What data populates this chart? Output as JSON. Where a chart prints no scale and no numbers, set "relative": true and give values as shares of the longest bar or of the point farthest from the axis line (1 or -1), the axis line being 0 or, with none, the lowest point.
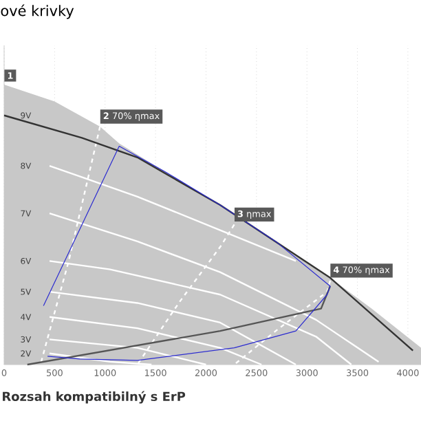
{
  "chart_data": {
    "type": "line",
    "title": "ové krivky",
    "relative": true,
    "xlim": [
      0,
      4130
    ],
    "xticks": [
      0,
      500,
      1000,
      1500,
      2000,
      2500,
      3000,
      3500,
      4000
    ],
    "grid": "x",
    "marker": "none",
    "series": [
      {
        "type": "area",
        "color": "#c8c8c8",
        "x": [
          0,
          500,
          950,
          1140,
          1590,
          2140,
          2690,
          3230,
          3640,
          4130
        ],
        "values": [
          1,
          0.94,
          0.85,
          0.79,
          0.69,
          0.57,
          0.44,
          0.31,
          0.2,
          0.06
        ]
      },
      {
        "name": "8V",
        "color": "#ffffff",
        "x": [
          450,
          1320,
          2140,
          2890
        ],
        "values": [
          0.71,
          0.6,
          0.48,
          0.37
        ]
      },
      {
        "name": "7V",
        "color": "#ffffff",
        "x": [
          450,
          1320,
          2140,
          3090,
          3710
        ],
        "values": [
          0.54,
          0.44,
          0.33,
          0.16,
          0.01
        ]
      },
      {
        "name": "6V",
        "color": "#ffffff",
        "x": [
          450,
          1050,
          2140,
          3090,
          3440
        ],
        "values": [
          0.37,
          0.34,
          0.25,
          0.1,
          0
        ]
      },
      {
        "name": "5V",
        "color": "#ffffff",
        "x": [
          450,
          1320,
          2140,
          2890
        ],
        "values": [
          0.26,
          0.22,
          0.15,
          0
        ]
      },
      {
        "name": "4V",
        "color": "#ffffff",
        "x": [
          450,
          1320,
          2140,
          2550
        ],
        "values": [
          0.17,
          0.13,
          0.06,
          0
        ]
      },
      {
        "name": "3V",
        "color": "#ffffff",
        "x": [
          450,
          1320,
          2000
        ],
        "values": [
          0.09,
          0.06,
          0
        ]
      },
      {
        "name": "2V",
        "color": "#ffffff",
        "x": [
          450,
          1050,
          1460
        ],
        "values": [
          0.04,
          0.01,
          0
        ]
      },
      {
        "color": "#ffffff",
        "line_style": "dashed",
        "x": [
          950,
          640,
          450,
          360
        ],
        "values": [
          0.85,
          0.37,
          0.12,
          0
        ]
      },
      {
        "color": "#ffffff",
        "line_style": "dashed",
        "x": [
          2280,
          2140,
          1730,
          1320
        ],
        "values": [
          0.5,
          0.42,
          0.22,
          0
        ]
      },
      {
        "color": "#ffffff",
        "line_style": "dashed",
        "x": [
          3230,
          3200,
          2690,
          2280
        ],
        "values": [
          0.3,
          0.26,
          0.12,
          0
        ]
      },
      {
        "name": "9V",
        "color": "#333333",
        "x": [
          0,
          770,
          1320,
          2140,
          3230,
          4050
        ],
        "values": [
          0.89,
          0.81,
          0.74,
          0.57,
          0.31,
          0.05
        ]
      },
      {
        "color": "#555555",
        "x": [
          230,
          2140,
          3140,
          3230
        ],
        "values": [
          0,
          0.12,
          0.2,
          0.28
        ]
      },
      {
        "color": "#2b2bd0",
        "x": [
          390,
          1140,
          1590,
          2140,
          2690,
          3230,
          3200,
          2890,
          2280,
          1320,
          750,
          430
        ],
        "values": [
          0.21,
          0.78,
          0.69,
          0.57,
          0.44,
          0.28,
          0.25,
          0.12,
          0.06,
          0.015,
          0.02,
          0.03
        ]
      }
    ],
    "annotations": [
      {
        "text": "**1**",
        "x": 0,
        "y": 1
      },
      {
        "text": "**2** 70% ηmax",
        "x": 950,
        "y": 0.85
      },
      {
        "text": "**3** ηmax",
        "x": 2280,
        "y": 0.5
      },
      {
        "text": "**4** 70% ηmax",
        "x": 3230,
        "y": 0.3
      },
      "Rozsah kompatibilný s ErP"
    ]
  }
}
